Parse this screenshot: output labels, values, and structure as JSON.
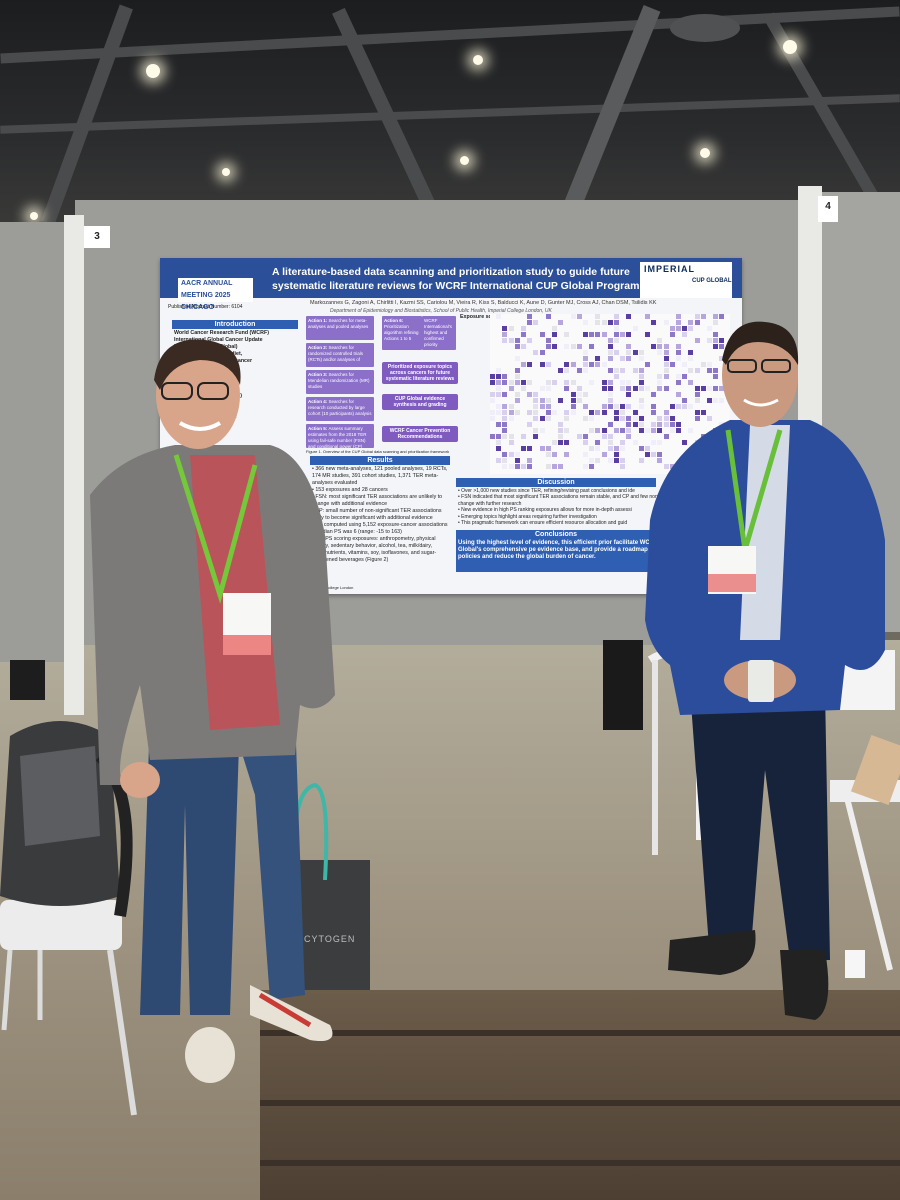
{
  "poster": {
    "title_line1": "A literature-based data scanning and prioritization study to guide future",
    "title_line2": "systematic literature reviews for WCRF International CUP Global Programme",
    "aacr_logo": "AACR ANNUAL MEETING 2025 CHICAGO",
    "abstract_number": "Published Abstract Number: 6104",
    "imperial_logo": "IMPERIAL",
    "cup_global_logo": "CUP GLOBAL",
    "authors": "Markozannes G, Zagoni A, Chirlitti I, Kazmi SS, Cariolou M, Vieira R, Kiss S, Balducci K, Aune D, Gunter MJ, Cross AJ, Chan DSM, Tsilidis KK",
    "department": "Department of Epidemiology and Biostatistics, School of Public Health, Imperial College London, UK",
    "introduction": {
      "heading": "Introduction",
      "lines": [
        "World Cancer Research Fund (WCRF)",
        "International Global Cancer Update",
        "Programme (CUP Global)",
        "research on adiposity, diet,",
        "sedentary behavior and cancer",
        "Report (TER) assessed",
        "cancer associations: 23",
        "strong-probable, 64",
        "evidence",
        "ic literature reviews (SLRs)",
        "ut resource-intensive and",
        "illance and prioritization",
        "y recognized in literature",
        "are needed to prioritize"
      ]
    },
    "actions": [
      {
        "label": "Action 1:",
        "text": "Searches for meta-analyses and pooled analyses"
      },
      {
        "label": "Action 2:",
        "text": "Searches for randomized controlled trials (RCTs) and/or analyses of"
      },
      {
        "label": "Action 3:",
        "text": "Searches for Mendelian randomization (MR) studies"
      },
      {
        "label": "Action 4:",
        "text": "Searches for research conducted by large cohort (10 participants) analysis"
      },
      {
        "label": "Action 5:",
        "text": "Assess summary estimates from the 2018 TER using fail-safe number (FSN) and conditional power (CP)"
      },
      {
        "label": "Action 6:",
        "text": "Prioritization algorithm refining Actions 1 to 5"
      }
    ],
    "flow": [
      "WCRF International's highest and confirmed priority",
      "Prioritized exposure topics across cancers for future systematic literature reviews",
      "CUP Global evidence synthesis and grading",
      "WCRF Cancer Prevention Recommendations"
    ],
    "figure1_caption": "Figure 1. Overview of the CUP Global data scanning and prioritization framework",
    "figure2_caption": "Figure 2. Overview of the CUP Global data scanning and prioritization framework",
    "heatmap_title": "Exposure score",
    "results": {
      "heading": "Results",
      "items": [
        "366 new meta-analyses, 121 pooled analyses, 19 RCTs, 174 MR studies, 391 cohort studies, 1,371 TER meta-analyses evaluated",
        "153 exposures and 28 cancers",
        "FSN: most significant TER associations are unlikely to change with additional evidence",
        "CP: small number of non-significant TER associations likely to become significant with additional evidence",
        "PS computed using 5,152 exposure-cancer associations",
        "Median PS was 6 (range: -15 to 163)",
        "Top PS scoring exposures: anthropometry, physical activity, sedentary behavior, alcohol, tea, milk/dairy, micronutrients, vitamins, soy, isoflavones, and sugar-sweetened beverages (Figure 2)"
      ]
    },
    "discussion": {
      "heading": "Discussion",
      "items": [
        "Over >1,000 new studies since TER, refining/revising past conclusions and ide",
        "FSN indicated that most significant TER associations remain stable, and CP and few non-significant associations may change with further research",
        "New evidence in high PS ranking exposures allows for more in-depth assessi",
        "Emerging topics highlight areas requiring further investigation",
        "This pragmatic framework can ensure efficient resource allocation and guid"
      ]
    },
    "conclusions": {
      "heading": "Conclusions",
      "text": "Using the highest level of evidence, this efficient prior facilitate WCRF International CUP Global's comprehensive pe evidence base, and provide a roadmap for future research policies and reduce the global burden of cancer."
    },
    "footer": "Imperial College London"
  },
  "booths": {
    "left_number": "3",
    "right_number": "4"
  },
  "bag_text": "CYTOGEN",
  "colors": {
    "poster_header": "#2c4f9a",
    "action_box": "#8b6fc9",
    "section_head": "#2f5fb3",
    "lanyard": "#6fcf3a"
  }
}
